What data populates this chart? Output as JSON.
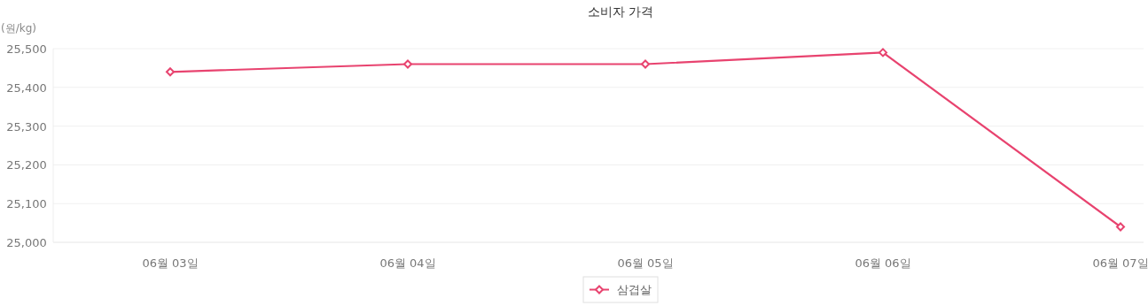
{
  "chart_data": {
    "type": "line",
    "title": "소비자 가격",
    "ylabel": "(원/kg)",
    "categories": [
      "06월 03일",
      "06월 04일",
      "06월 05일",
      "06월 06일",
      "06월 07일"
    ],
    "series": [
      {
        "name": "삼겹살",
        "color": "#e8436f",
        "values": [
          25440,
          25460,
          25460,
          25490,
          25040
        ]
      }
    ],
    "ylim": [
      25000,
      25500
    ],
    "yticks": [
      {
        "value": 25000,
        "label": "25,000"
      },
      {
        "value": 25100,
        "label": "25,100"
      },
      {
        "value": 25200,
        "label": "25,200"
      },
      {
        "value": 25300,
        "label": "25,300"
      },
      {
        "value": 25400,
        "label": "25,400"
      },
      {
        "value": 25500,
        "label": "25,500"
      }
    ],
    "grid": "y",
    "legend": "bottom",
    "marker": "diamond",
    "line_style": "solid"
  }
}
